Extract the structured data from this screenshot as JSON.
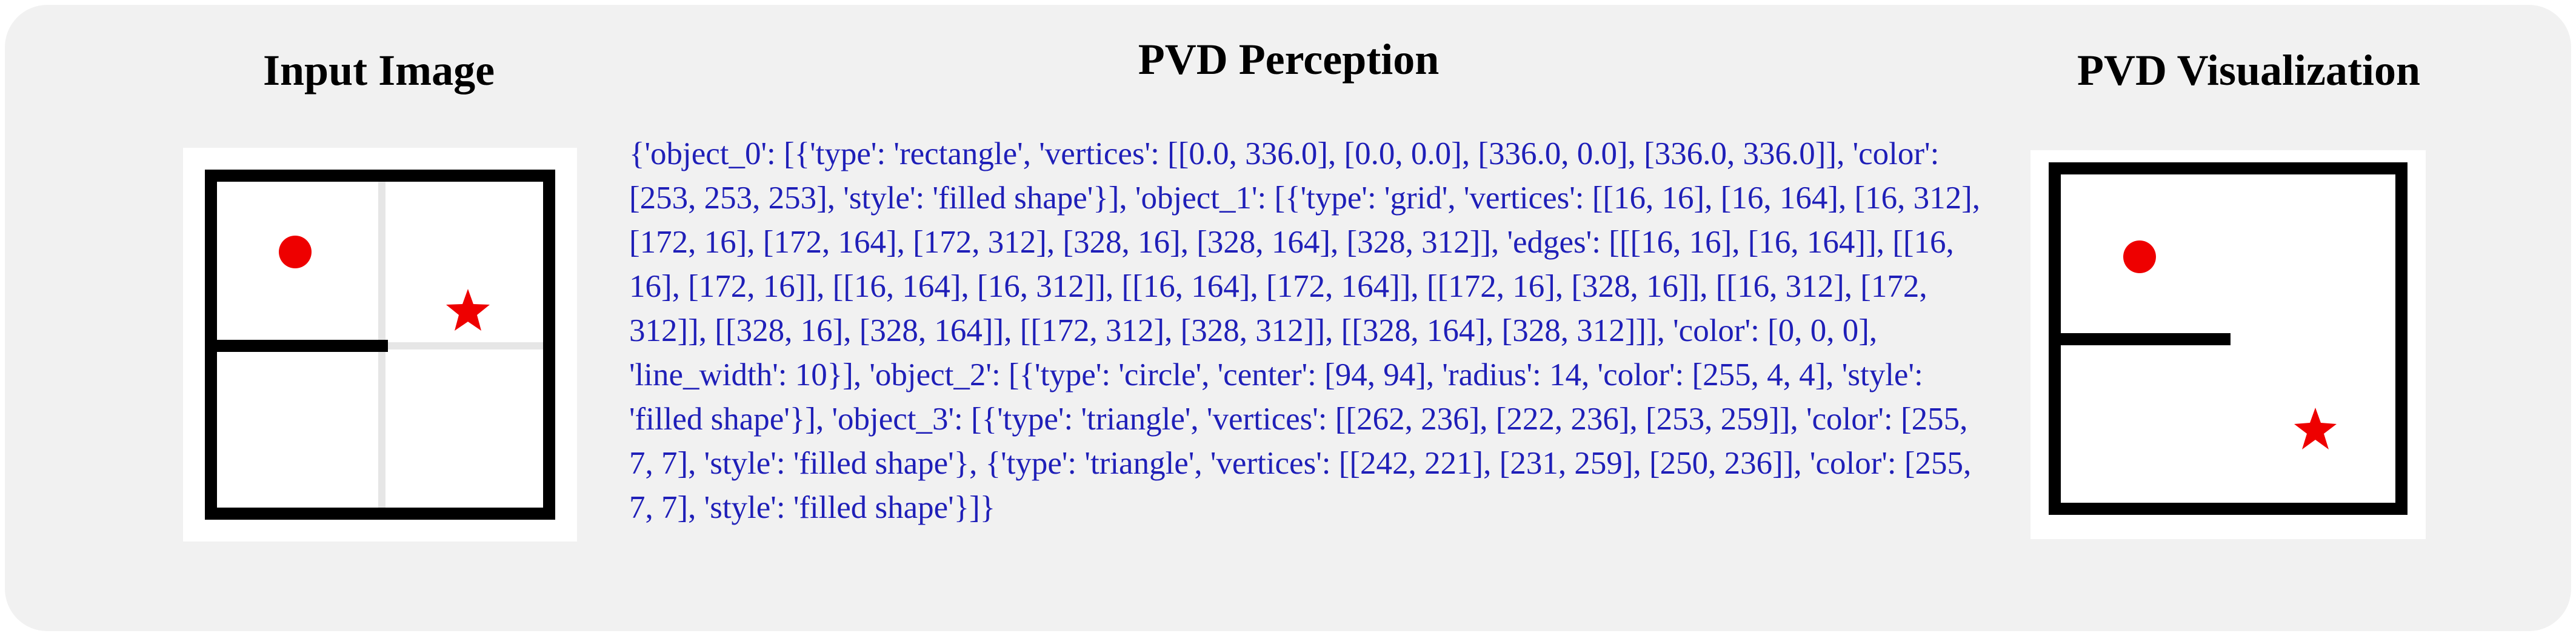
{
  "headings": {
    "input": "Input Image",
    "perception": "PVD Perception",
    "visualization": "PVD Visualization"
  },
  "perception_text": "{'object_0': [{'type': 'rectangle', 'vertices': [[0.0, 336.0], [0.0, 0.0], [336.0, 0.0], [336.0, 336.0]], 'color': [253, 253, 253], 'style': 'filled shape'}], 'object_1': [{'type': 'grid', 'vertices': [[16, 16], [16, 164], [16, 312], [172, 16], [172, 164], [172, 312], [328, 16], [328, 164], [328, 312]], 'edges': [[[16, 16], [16, 164]], [[16, 16], [172, 16]], [[16, 164], [16, 312]], [[16, 164], [172, 164]], [[172, 16], [328, 16]], [[16, 312], [172, 312]], [[328, 16], [328, 164]], [[172, 312], [328, 312]], [[328, 164], [328, 312]]], 'color': [0, 0, 0], 'line_width': 10}], 'object_2': [{'type': 'circle', 'center': [94, 94], 'radius': 14, 'color': [255, 4, 4], 'style': 'filled shape'}], 'object_3': [{'type': 'triangle', 'vertices': [[262, 236], [222, 236], [253, 259]], 'color': [255, 7, 7], 'style': 'filled shape'}, {'type': 'triangle', 'vertices': [[242, 221], [231, 259], [250, 236]], 'color': [255, 7, 7], 'style': 'filled shape'}]}",
  "colors": {
    "wall": "#000000",
    "marker": "#ee0000",
    "text": "#1f1fb8",
    "faint_grid": "#e6e6e6"
  },
  "icons": {
    "start_marker": "red-circle",
    "goal_marker": "red-star"
  }
}
